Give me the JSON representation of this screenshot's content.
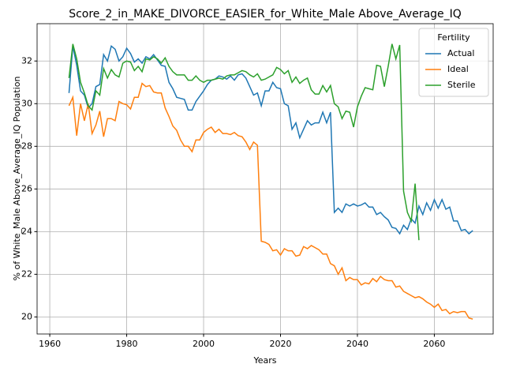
{
  "chart_data": {
    "type": "line",
    "title": "Score_2_in_MAKE_DIVORCE_EASIER_for_White_Male Above_Average_IQ",
    "xlabel": "Years",
    "ylabel": "% of White_Male Above_Average_IQ Population",
    "x": [
      1965,
      1966,
      1967,
      1968,
      1969,
      1970,
      1971,
      1972,
      1973,
      1974,
      1975,
      1976,
      1977,
      1978,
      1979,
      1980,
      1981,
      1982,
      1983,
      1984,
      1985,
      1986,
      1987,
      1988,
      1989,
      1990,
      1991,
      1992,
      1993,
      1994,
      1995,
      1996,
      1997,
      1998,
      1999,
      2000,
      2001,
      2002,
      2003,
      2004,
      2005,
      2006,
      2007,
      2008,
      2009,
      2010,
      2011,
      2012,
      2013,
      2014,
      2015,
      2016,
      2017,
      2018,
      2019,
      2020,
      2021,
      2022,
      2023,
      2024,
      2025,
      2026,
      2027,
      2028,
      2029,
      2030,
      2031,
      2032,
      2033,
      2034,
      2035,
      2036,
      2037,
      2038,
      2039,
      2040,
      2041,
      2042,
      2043,
      2044,
      2045,
      2046,
      2047,
      2048,
      2049,
      2050,
      2051,
      2052,
      2053,
      2054,
      2055,
      2056,
      2057,
      2058,
      2059,
      2060,
      2061,
      2062,
      2063,
      2064,
      2065,
      2066,
      2067,
      2068,
      2069,
      2070
    ],
    "series": [
      {
        "name": "Actual",
        "color": "#1f77b4",
        "values": [
          30.5,
          32.7,
          31.8,
          30.6,
          30.4,
          29.8,
          30.0,
          30.8,
          30.9,
          32.3,
          32.0,
          32.7,
          32.55,
          32.0,
          32.2,
          32.6,
          32.35,
          31.95,
          32.1,
          31.9,
          32.2,
          32.1,
          32.3,
          32.05,
          31.8,
          31.75,
          31.0,
          30.7,
          30.3,
          30.25,
          30.2,
          29.7,
          29.7,
          30.1,
          30.35,
          30.6,
          30.9,
          31.1,
          31.15,
          31.3,
          31.25,
          31.15,
          31.3,
          31.1,
          31.35,
          31.4,
          31.2,
          30.8,
          30.4,
          30.5,
          29.9,
          30.6,
          30.6,
          31.0,
          30.75,
          30.7,
          30.0,
          29.9,
          28.8,
          29.1,
          28.4,
          28.8,
          29.2,
          29.0,
          29.1,
          29.1,
          29.6,
          29.1,
          29.6,
          24.9,
          25.1,
          24.9,
          25.3,
          25.2,
          25.3,
          25.2,
          25.25,
          25.35,
          25.15,
          25.15,
          24.8,
          24.9,
          24.7,
          24.55,
          24.2,
          24.15,
          23.9,
          24.3,
          24.1,
          24.6,
          24.4,
          25.2,
          24.8,
          25.35,
          25.0,
          25.5,
          25.1,
          25.5,
          25.05,
          25.15,
          24.5,
          24.5,
          24.05,
          24.1,
          23.9,
          24.05
        ]
      },
      {
        "name": "Ideal",
        "color": "#ff7f0e",
        "values": [
          29.9,
          30.3,
          28.5,
          30.0,
          29.2,
          30.0,
          28.6,
          29.0,
          29.65,
          28.45,
          29.3,
          29.3,
          29.2,
          30.1,
          30.0,
          29.95,
          29.75,
          30.3,
          30.3,
          30.95,
          30.8,
          30.85,
          30.55,
          30.5,
          30.5,
          29.8,
          29.4,
          28.95,
          28.75,
          28.3,
          28.0,
          28.0,
          27.75,
          28.3,
          28.3,
          28.65,
          28.8,
          28.9,
          28.65,
          28.8,
          28.6,
          28.6,
          28.55,
          28.65,
          28.5,
          28.45,
          28.2,
          27.85,
          28.2,
          28.05,
          23.55,
          23.5,
          23.4,
          23.1,
          23.15,
          22.9,
          23.2,
          23.1,
          23.1,
          22.85,
          22.9,
          23.3,
          23.2,
          23.35,
          23.25,
          23.15,
          22.95,
          22.95,
          22.5,
          22.4,
          22.0,
          22.3,
          21.7,
          21.85,
          21.75,
          21.75,
          21.5,
          21.6,
          21.55,
          21.8,
          21.65,
          21.9,
          21.75,
          21.7,
          21.7,
          21.4,
          21.45,
          21.2,
          21.1,
          21.0,
          20.9,
          20.95,
          20.85,
          20.7,
          20.6,
          20.45,
          20.6,
          20.3,
          20.35,
          20.15,
          20.25,
          20.2,
          20.25,
          20.25,
          19.95,
          19.9
        ]
      },
      {
        "name": "Sterile",
        "color": "#2ca02c",
        "values": [
          31.2,
          32.8,
          32.1,
          31.0,
          30.5,
          29.9,
          29.7,
          30.6,
          30.4,
          31.65,
          31.2,
          31.6,
          31.35,
          31.25,
          31.9,
          32.0,
          31.95,
          31.55,
          31.75,
          31.5,
          32.1,
          32.05,
          32.2,
          32.1,
          31.9,
          32.15,
          31.75,
          31.5,
          31.35,
          31.35,
          31.35,
          31.1,
          31.1,
          31.3,
          31.1,
          31.0,
          31.1,
          31.1,
          31.15,
          31.2,
          31.15,
          31.3,
          31.35,
          31.35,
          31.45,
          31.55,
          31.5,
          31.35,
          31.25,
          31.4,
          31.1,
          31.15,
          31.25,
          31.35,
          31.7,
          31.6,
          31.4,
          31.55,
          31.0,
          31.25,
          30.95,
          31.1,
          31.2,
          30.65,
          30.45,
          30.45,
          30.85,
          30.55,
          30.85,
          30.0,
          29.85,
          29.3,
          29.65,
          29.6,
          28.9,
          29.85,
          30.35,
          30.75,
          30.7,
          30.65,
          31.8,
          31.75,
          30.8,
          31.75,
          32.8,
          32.1,
          32.75,
          25.9,
          24.9,
          24.5,
          26.25,
          23.6,
          null,
          null,
          null,
          null,
          null,
          null,
          null,
          null,
          null,
          null,
          null,
          null,
          null,
          null
        ]
      }
    ],
    "xlim": [
      1956.7,
      2075.3
    ],
    "xticks": [
      1960,
      1980,
      2000,
      2020,
      2040,
      2060
    ],
    "ylim": [
      19.2,
      33.75
    ],
    "yticks": [
      20,
      22,
      24,
      26,
      28,
      30,
      32
    ],
    "grid": true,
    "legend_title": "Fertility",
    "legend_position": "upper right"
  }
}
